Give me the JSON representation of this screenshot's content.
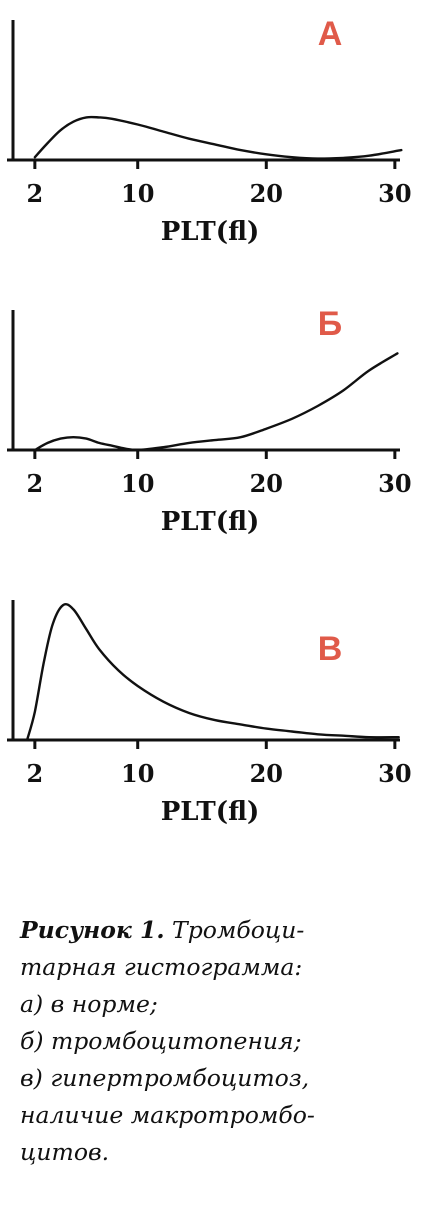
{
  "chart_data": [
    {
      "type": "line",
      "panel": "А",
      "xlabel": "PLT(fl)",
      "ylabel": "",
      "xticks": [
        2,
        10,
        20,
        30
      ],
      "xlim": [
        0.3,
        30.4
      ],
      "ylim": [
        0,
        1
      ],
      "grid": false,
      "series": [
        {
          "x": [
            2,
            3,
            4,
            5,
            6,
            7,
            8,
            10,
            12,
            14,
            16,
            18,
            20,
            22,
            24,
            26,
            28,
            30.5
          ],
          "y": [
            0.02,
            0.12,
            0.21,
            0.27,
            0.3,
            0.3,
            0.29,
            0.25,
            0.2,
            0.15,
            0.11,
            0.07,
            0.04,
            0.02,
            0.01,
            0.015,
            0.03,
            0.07
          ]
        }
      ]
    },
    {
      "type": "line",
      "panel": "Б",
      "xlabel": "PLT(fl)",
      "ylabel": "",
      "xticks": [
        2,
        10,
        20,
        30
      ],
      "xlim": [
        0.3,
        30.4
      ],
      "ylim": [
        0,
        1
      ],
      "grid": false,
      "series": [
        {
          "x": [
            2,
            3,
            4,
            5,
            6,
            7,
            8,
            9,
            10,
            12,
            14,
            16,
            18,
            20,
            22,
            24,
            26,
            28,
            30.2
          ],
          "y": [
            0.0,
            0.05,
            0.08,
            0.09,
            0.08,
            0.05,
            0.03,
            0.01,
            0.0,
            0.02,
            0.05,
            0.07,
            0.09,
            0.15,
            0.22,
            0.31,
            0.42,
            0.56,
            0.68
          ]
        }
      ]
    },
    {
      "type": "line",
      "panel": "В",
      "xlabel": "PLT(fl)",
      "ylabel": "",
      "xticks": [
        2,
        10,
        20,
        30
      ],
      "xlim": [
        0.3,
        30.4
      ],
      "ylim": [
        0,
        1
      ],
      "grid": false,
      "series": [
        {
          "x": [
            1.4,
            2,
            2.7,
            3.4,
            4.2,
            5,
            6,
            7,
            8.5,
            10,
            12,
            14,
            16,
            18,
            20,
            22,
            24,
            26,
            28,
            30.3
          ],
          "y": [
            0.0,
            0.2,
            0.55,
            0.82,
            0.95,
            0.92,
            0.78,
            0.64,
            0.49,
            0.38,
            0.27,
            0.19,
            0.14,
            0.11,
            0.08,
            0.06,
            0.04,
            0.03,
            0.02,
            0.02
          ]
        }
      ]
    }
  ],
  "caption": {
    "lead": "Рисунок 1.",
    "lines": [
      "Тромбоци-",
      "тарная гистограмма:",
      "а) в норме;",
      "б) тромбоцитопения;",
      "в) гипертромбоцитоз,",
      "наличие макротромбо-",
      "цитов."
    ]
  },
  "colors": {
    "panel_letter": "#e05a49",
    "ink": "#111111",
    "background": "#ffffff"
  }
}
